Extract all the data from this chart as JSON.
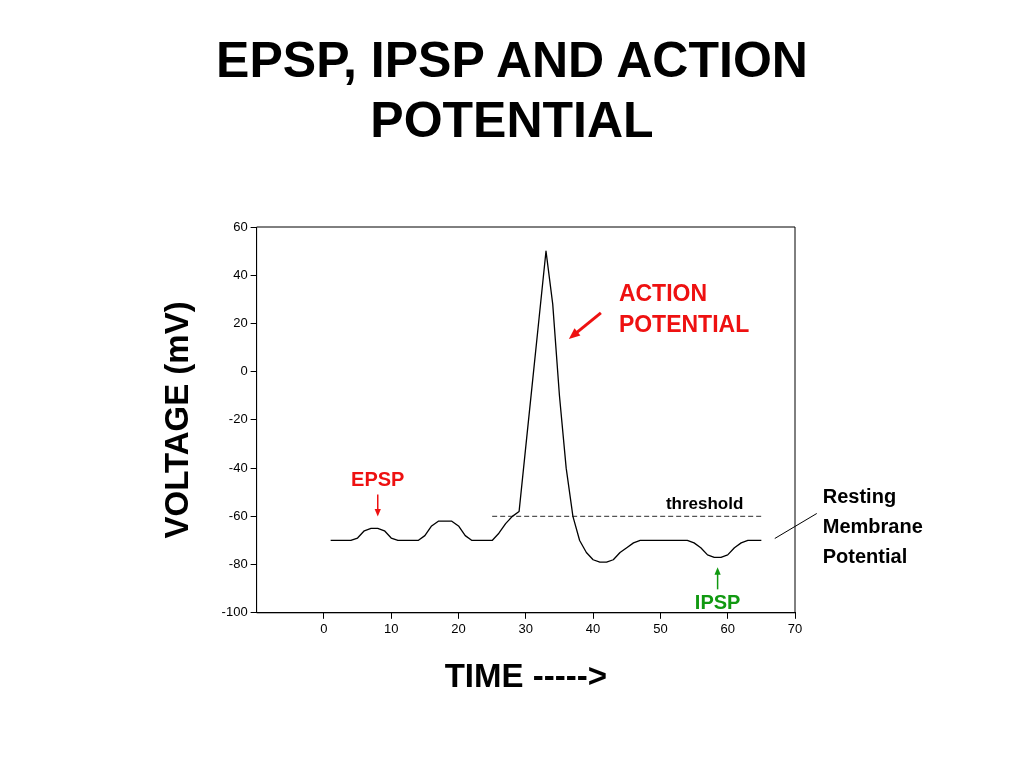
{
  "chart_data": {
    "type": "line",
    "title": "EPSP, IPSP AND ACTION POTENTIAL",
    "xlabel": "TIME ----->",
    "ylabel": "VOLTAGE (mV)",
    "xlim": [
      -10,
      70
    ],
    "xticks": [
      0,
      10,
      20,
      30,
      40,
      50,
      60,
      70
    ],
    "ylim": [
      -100,
      60
    ],
    "yticks": [
      -100,
      -80,
      -60,
      -40,
      -20,
      0,
      20,
      40,
      60
    ],
    "grid": false,
    "legend": false,
    "marker": "none",
    "series": [
      {
        "color": "#000000",
        "line_style": "solid",
        "x": [
          1,
          4,
          5,
          6,
          7,
          8,
          9,
          10,
          11,
          14,
          15,
          16,
          17,
          19,
          20,
          21,
          22,
          25,
          26,
          27,
          28,
          29,
          30,
          31,
          32,
          33,
          34,
          35,
          36,
          37,
          38,
          39,
          40,
          41,
          42,
          43,
          44,
          45,
          46,
          47,
          54,
          55,
          56,
          57,
          58,
          59,
          60,
          61,
          62,
          63,
          65
        ],
        "values": [
          -70,
          -70,
          -69,
          -66,
          -65,
          -65,
          -66,
          -69,
          -70,
          -70,
          -68,
          -64,
          -62,
          -62,
          -64,
          -68,
          -70,
          -70,
          -67,
          -63,
          -60,
          -58,
          -31,
          -4,
          23,
          50,
          28,
          -10,
          -40,
          -60,
          -70,
          -75,
          -78,
          -79,
          -79,
          -78,
          -75,
          -73,
          -71,
          -70,
          -70,
          -71,
          -73,
          -76,
          -77,
          -77,
          -76,
          -73,
          -71,
          -70,
          -70
        ]
      },
      {
        "name": "threshold",
        "color": "#555555",
        "line_style": "dashed",
        "x": [
          25,
          65
        ],
        "values": [
          -60,
          -60
        ]
      }
    ],
    "annotations": [
      {
        "text": "EPSP",
        "x": 8,
        "y": -65
      },
      {
        "text": "IPSP",
        "x": 58.5,
        "y": -77
      },
      "ACTION POTENTIAL",
      "Resting Membrane Potential"
    ]
  }
}
